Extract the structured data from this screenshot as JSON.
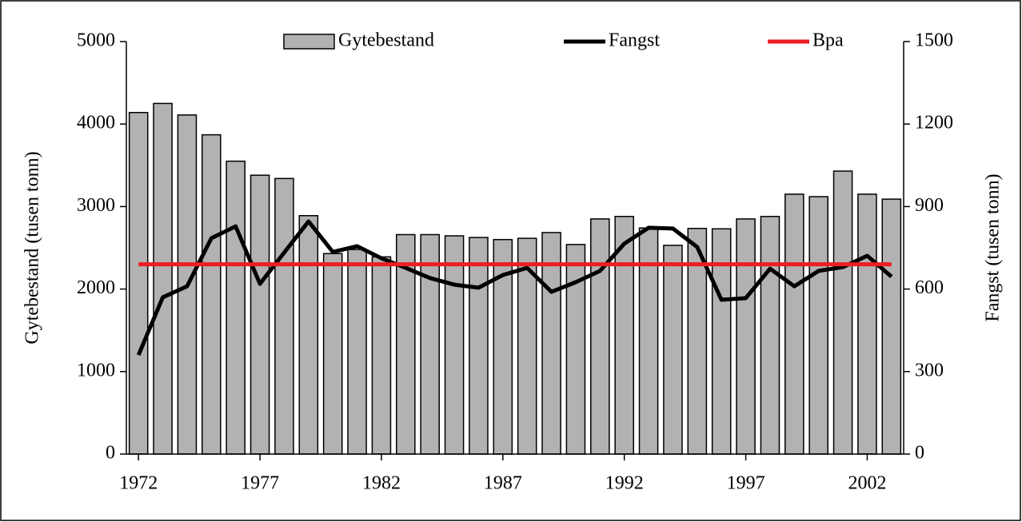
{
  "chart_data": {
    "type": "bar-line",
    "x": [
      1972,
      1973,
      1974,
      1975,
      1976,
      1977,
      1978,
      1979,
      1980,
      1981,
      1982,
      1983,
      1984,
      1985,
      1986,
      1987,
      1988,
      1989,
      1990,
      1991,
      1992,
      1993,
      1994,
      1995,
      1996,
      1997,
      1998,
      1999,
      2000,
      2001,
      2002,
      2003
    ],
    "xlim": [
      1971.5,
      2003.5
    ],
    "xticks": [
      1972,
      1977,
      1982,
      1987,
      1992,
      1997,
      2002
    ],
    "ylabel": "Gytebestand (tusen tonn)",
    "y2label": "Fangst (tusen tonn)",
    "ylim": [
      0,
      5000
    ],
    "yticks": [
      0,
      1000,
      2000,
      3000,
      4000,
      5000
    ],
    "y2lim": [
      0,
      1500
    ],
    "y2ticks": [
      0,
      300,
      600,
      900,
      1200,
      1500
    ],
    "series": [
      {
        "name": "Gytebestand",
        "kind": "bar",
        "color": "#b2b2b2",
        "values": [
          4140,
          4250,
          4110,
          3870,
          3550,
          3380,
          3340,
          2890,
          2430,
          2480,
          2390,
          2660,
          2660,
          2645,
          2625,
          2600,
          2615,
          2685,
          2540,
          2850,
          2880,
          2740,
          2530,
          2735,
          2730,
          2850,
          2880,
          3150,
          3120,
          3430,
          3150,
          3090
        ]
      },
      {
        "name": "Fangst",
        "kind": "line",
        "color": "#000000",
        "axis": "y2",
        "values": [
          360,
          570,
          610,
          785,
          828,
          619,
          733,
          846,
          735,
          756,
          712,
          677,
          640,
          616,
          605,
          651,
          677,
          590,
          625,
          666,
          765,
          823,
          820,
          753,
          561,
          567,
          674,
          610,
          666,
          680,
          721,
          645
        ]
      },
      {
        "name": "Bpa",
        "kind": "line",
        "color": "#ee1c25",
        "values": [
          2300,
          2300,
          2300,
          2300,
          2300,
          2300,
          2300,
          2300,
          2300,
          2300,
          2300,
          2300,
          2300,
          2300,
          2300,
          2300,
          2300,
          2300,
          2300,
          2300,
          2300,
          2300,
          2300,
          2300,
          2300,
          2300,
          2300,
          2300,
          2300,
          2300,
          2300,
          2300
        ]
      }
    ]
  }
}
